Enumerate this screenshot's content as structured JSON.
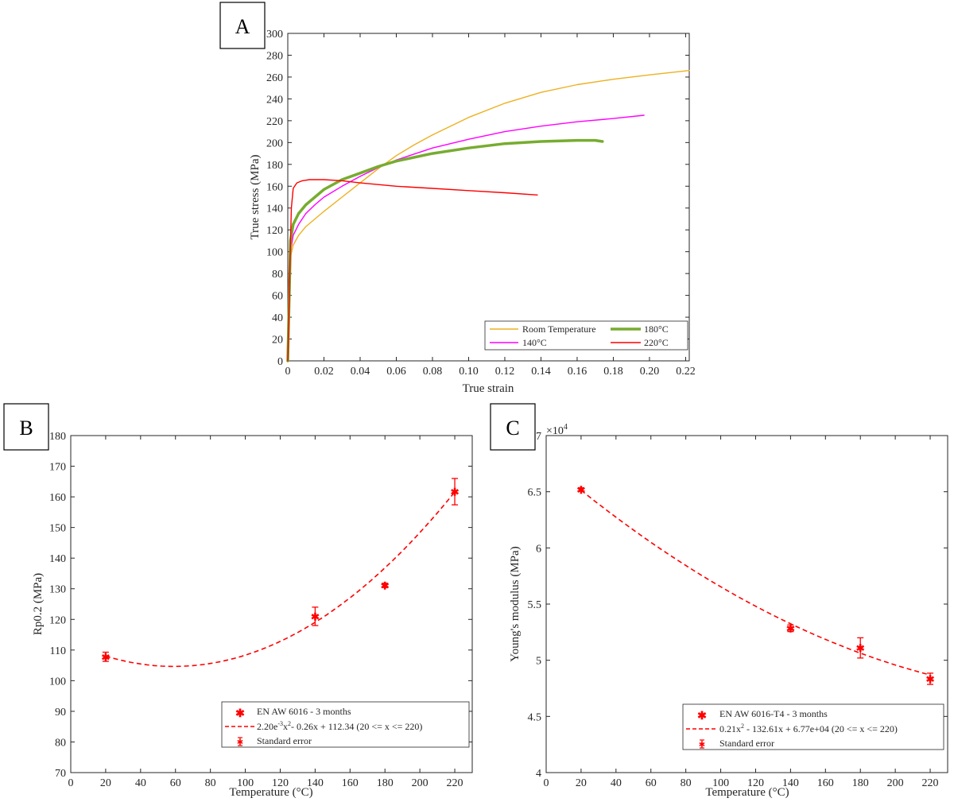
{
  "chart_data": [
    {
      "panel": "A",
      "type": "line",
      "xlabel": "True strain",
      "ylabel": "True stress (MPa)",
      "xlim": [
        0,
        0.222
      ],
      "ylim": [
        0,
        300
      ],
      "xticks": [
        0,
        0.02,
        0.04,
        0.06,
        0.08,
        0.1,
        0.12,
        0.14,
        0.16,
        0.18,
        0.2,
        0.22
      ],
      "xtick_labels": [
        "0",
        "0.02",
        "0.04",
        "0.06",
        "0.08",
        "0.10",
        "0.12",
        "0.14",
        "0.16",
        "0.18",
        "0.20",
        "0.22"
      ],
      "yticks": [
        0,
        20,
        40,
        60,
        80,
        100,
        120,
        140,
        160,
        180,
        200,
        220,
        240,
        260,
        280,
        300
      ],
      "grid": false,
      "legend_position": "bottom-right",
      "series": [
        {
          "name": "Room Temperature",
          "color": "#EDB120",
          "x": [
            0,
            0.0015,
            0.003,
            0.006,
            0.01,
            0.015,
            0.02,
            0.03,
            0.04,
            0.05,
            0.06,
            0.07,
            0.08,
            0.1,
            0.12,
            0.14,
            0.16,
            0.18,
            0.2,
            0.222
          ],
          "y": [
            0,
            95,
            106,
            115,
            123,
            130,
            137,
            150,
            163,
            176,
            188,
            198,
            207,
            223,
            236,
            246,
            253,
            258,
            262,
            266
          ]
        },
        {
          "name": "140°C",
          "color": "#FF00FF",
          "x": [
            0,
            0.0015,
            0.003,
            0.006,
            0.01,
            0.015,
            0.02,
            0.03,
            0.04,
            0.05,
            0.06,
            0.08,
            0.1,
            0.12,
            0.14,
            0.16,
            0.18,
            0.197
          ],
          "y": [
            0,
            100,
            115,
            125,
            135,
            143,
            150,
            160,
            169,
            177,
            184,
            195,
            203,
            210,
            215,
            219,
            222,
            225
          ]
        },
        {
          "name": "180°C",
          "color": "#77AC30",
          "x": [
            0,
            0.0015,
            0.003,
            0.006,
            0.01,
            0.015,
            0.02,
            0.03,
            0.04,
            0.05,
            0.06,
            0.08,
            0.1,
            0.12,
            0.14,
            0.16,
            0.17,
            0.174
          ],
          "y": [
            0,
            110,
            125,
            135,
            143,
            150,
            157,
            166,
            172,
            178,
            183,
            190,
            195,
            199,
            201,
            202,
            202,
            201
          ]
        },
        {
          "name": "220°C",
          "color": "#FF0000",
          "x": [
            0,
            0.0015,
            0.002,
            0.003,
            0.005,
            0.008,
            0.012,
            0.02,
            0.03,
            0.04,
            0.06,
            0.08,
            0.1,
            0.12,
            0.138
          ],
          "y": [
            0,
            110,
            140,
            158,
            163,
            165,
            166,
            166,
            165,
            163,
            160,
            158,
            156,
            154,
            152
          ]
        }
      ]
    },
    {
      "panel": "B",
      "type": "scatter",
      "xlabel": "Temperature (°C)",
      "ylabel": "Rp0.2 (MPa)",
      "xlim": [
        0,
        230
      ],
      "ylim": [
        70,
        180
      ],
      "xticks": [
        0,
        20,
        40,
        60,
        80,
        100,
        120,
        140,
        160,
        180,
        200,
        220
      ],
      "yticks": [
        70,
        80,
        90,
        100,
        110,
        120,
        130,
        140,
        150,
        160,
        170,
        180
      ],
      "grid": false,
      "legend_position": "bottom-right",
      "color": "#FF0000",
      "points": {
        "name": "EN AW 6016 - 3 months",
        "x": [
          20,
          140,
          180,
          220
        ],
        "y": [
          107.8,
          121.0,
          131.1,
          161.7
        ],
        "error": [
          1.5,
          3.0,
          0.7,
          4.3
        ]
      },
      "fit": {
        "label_parts": [
          "2.20e",
          "-3",
          "x",
          "2",
          "- 0.26x + 112.34 (20 <= x <= 220)"
        ],
        "coefficients": [
          0.0022,
          -0.26,
          112.34
        ],
        "range": [
          20,
          220
        ]
      },
      "error_label": "Standard error"
    },
    {
      "panel": "C",
      "type": "scatter",
      "xlabel": "Temperature (°C)",
      "ylabel": "Young's modulus (MPa)",
      "xlim": [
        0,
        230
      ],
      "ylim": [
        40000,
        70000
      ],
      "xticks": [
        0,
        20,
        40,
        60,
        80,
        100,
        120,
        140,
        160,
        180,
        200,
        220
      ],
      "yticks": [
        40000,
        45000,
        50000,
        55000,
        60000,
        65000,
        70000
      ],
      "ytick_labels": [
        "4",
        "4.5",
        "5",
        "5.5",
        "6",
        "6.5",
        "7"
      ],
      "y_multiplier": "×10",
      "y_multiplier_exp": "4",
      "grid": false,
      "legend_position": "bottom-right",
      "color": "#FF0000",
      "points": {
        "name": "EN AW 6016-T4 - 3 months",
        "x": [
          20,
          140,
          180,
          220
        ],
        "y": [
          65200,
          52850,
          51100,
          48350
        ],
        "error": [
          150,
          300,
          900,
          500
        ]
      },
      "fit": {
        "label_parts": [
          "0.21x",
          "2",
          " - 132.61x + 6.77e+04 (20 <= x <= 220)"
        ],
        "coefficients": [
          0.21,
          -132.61,
          67700
        ],
        "range": [
          20,
          220
        ]
      },
      "error_label": "Standard error"
    }
  ]
}
